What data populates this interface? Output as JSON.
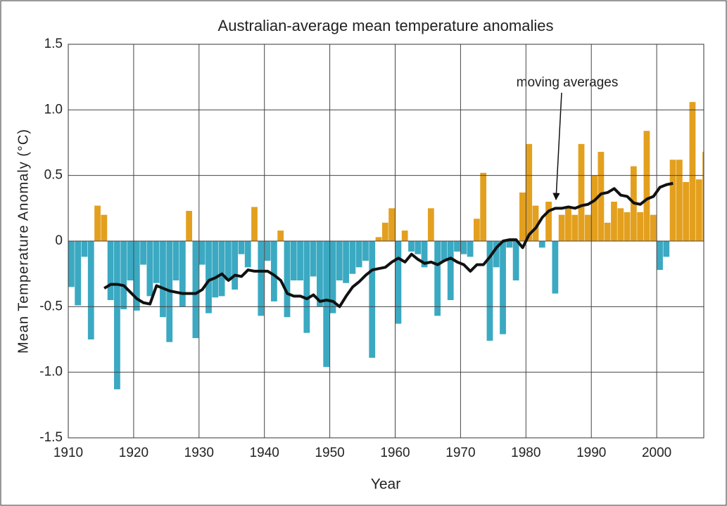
{
  "chart_data": {
    "type": "bar",
    "title": "Australian-average mean temperature anomalies",
    "xlabel": "Year",
    "ylabel": "Mean Temperature Anomaly  (°C)",
    "annotation": "moving averages",
    "x": [
      1910,
      1911,
      1912,
      1913,
      1914,
      1915,
      1916,
      1917,
      1918,
      1919,
      1920,
      1921,
      1922,
      1923,
      1924,
      1925,
      1926,
      1927,
      1928,
      1929,
      1930,
      1931,
      1932,
      1933,
      1934,
      1935,
      1936,
      1937,
      1938,
      1939,
      1940,
      1941,
      1942,
      1943,
      1944,
      1945,
      1946,
      1947,
      1948,
      1949,
      1950,
      1951,
      1952,
      1953,
      1954,
      1955,
      1956,
      1957,
      1958,
      1959,
      1960,
      1961,
      1962,
      1963,
      1964,
      1965,
      1966,
      1967,
      1968,
      1969,
      1970,
      1971,
      1972,
      1973,
      1974,
      1975,
      1976,
      1977,
      1978,
      1979,
      1980,
      1981,
      1982,
      1983,
      1984,
      1985,
      1986,
      1987,
      1988,
      1989,
      1990,
      1991,
      1992,
      1993,
      1994,
      1995,
      1996,
      1997,
      1998,
      1999,
      2000,
      2001,
      2002,
      2003,
      2004,
      2005,
      2006,
      2007
    ],
    "values": [
      -0.35,
      -0.49,
      -0.12,
      -0.75,
      0.27,
      0.2,
      -0.45,
      -1.13,
      -0.52,
      -0.3,
      -0.53,
      -0.18,
      -0.42,
      -0.32,
      -0.58,
      -0.77,
      -0.3,
      -0.5,
      0.23,
      -0.74,
      -0.18,
      -0.55,
      -0.43,
      -0.42,
      -0.3,
      -0.37,
      -0.1,
      -0.2,
      0.26,
      -0.57,
      -0.15,
      -0.46,
      0.08,
      -0.58,
      -0.3,
      -0.3,
      -0.7,
      -0.27,
      -0.5,
      -0.96,
      -0.55,
      -0.3,
      -0.32,
      -0.25,
      -0.2,
      -0.15,
      -0.89,
      0.03,
      0.14,
      0.25,
      -0.63,
      0.08,
      -0.08,
      -0.1,
      -0.2,
      0.25,
      -0.57,
      -0.15,
      -0.45,
      -0.08,
      -0.1,
      -0.12,
      0.17,
      0.52,
      -0.76,
      -0.2,
      -0.71,
      -0.05,
      -0.3,
      0.37,
      0.74,
      0.27,
      -0.05,
      0.3,
      -0.4,
      0.2,
      0.25,
      0.2,
      0.74,
      0.2,
      0.5,
      0.68,
      0.14,
      0.3,
      0.25,
      0.22,
      0.57,
      0.22,
      0.84,
      0.2,
      -0.22,
      -0.12,
      0.62,
      0.62,
      0.45,
      1.06,
      0.47,
      0.68
    ],
    "positive_color": "#e3a01e",
    "negative_color": "#3ba9c2",
    "moving_average": {
      "color": "#111111",
      "x": [
        1915,
        1916,
        1917,
        1918,
        1919,
        1920,
        1921,
        1922,
        1923,
        1924,
        1925,
        1926,
        1927,
        1928,
        1929,
        1930,
        1931,
        1932,
        1933,
        1934,
        1935,
        1936,
        1937,
        1938,
        1939,
        1940,
        1941,
        1942,
        1943,
        1944,
        1945,
        1946,
        1947,
        1948,
        1949,
        1950,
        1951,
        1952,
        1953,
        1954,
        1955,
        1956,
        1957,
        1958,
        1959,
        1960,
        1961,
        1962,
        1963,
        1964,
        1965,
        1966,
        1967,
        1968,
        1969,
        1970,
        1971,
        1972,
        1973,
        1974,
        1975,
        1976,
        1977,
        1978,
        1979,
        1980,
        1981,
        1982,
        1983,
        1984,
        1985,
        1986,
        1987,
        1988,
        1989,
        1990,
        1991,
        1992,
        1993,
        1994,
        1995,
        1996,
        1997,
        1998,
        1999,
        2000,
        2001,
        2002
      ],
      "values": [
        -0.36,
        -0.33,
        -0.33,
        -0.34,
        -0.39,
        -0.44,
        -0.47,
        -0.48,
        -0.34,
        -0.36,
        -0.38,
        -0.39,
        -0.4,
        -0.4,
        -0.4,
        -0.37,
        -0.3,
        -0.28,
        -0.25,
        -0.3,
        -0.26,
        -0.27,
        -0.22,
        -0.23,
        -0.23,
        -0.23,
        -0.26,
        -0.3,
        -0.4,
        -0.42,
        -0.42,
        -0.44,
        -0.41,
        -0.46,
        -0.45,
        -0.46,
        -0.5,
        -0.42,
        -0.35,
        -0.31,
        -0.26,
        -0.22,
        -0.21,
        -0.2,
        -0.16,
        -0.13,
        -0.16,
        -0.1,
        -0.14,
        -0.17,
        -0.16,
        -0.18,
        -0.15,
        -0.13,
        -0.16,
        -0.18,
        -0.23,
        -0.18,
        -0.18,
        -0.12,
        -0.05,
        0.0,
        0.01,
        0.01,
        -0.05,
        0.05,
        0.1,
        0.18,
        0.23,
        0.25,
        0.25,
        0.26,
        0.25,
        0.27,
        0.28,
        0.31,
        0.36,
        0.37,
        0.4,
        0.35,
        0.34,
        0.29,
        0.28,
        0.32,
        0.34,
        0.41,
        0.43,
        0.44
      ]
    },
    "xlim": [
      1910,
      2007.2
    ],
    "xticks": [
      1910,
      1920,
      1930,
      1940,
      1950,
      1960,
      1970,
      1980,
      1990,
      2000
    ],
    "ylim": [
      -1.5,
      1.5
    ],
    "yticks": [
      1.5,
      {
        "value": 1.0,
        "label": "1.0"
      },
      0.5,
      0,
      -0.5,
      {
        "value": -1.0,
        "label": "-1.0"
      },
      -1.5
    ],
    "grid": true
  }
}
